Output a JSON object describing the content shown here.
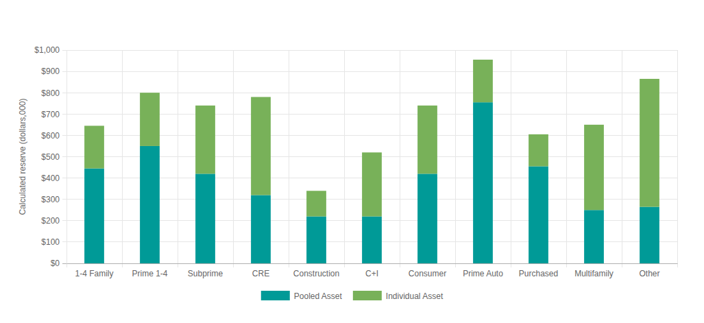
{
  "chart_data": {
    "type": "bar",
    "stacked": true,
    "grid": true,
    "legend": "bottom",
    "y_label": "Calculated reserve (dollars,000)",
    "categories": [
      "1-4 Family",
      "Prime 1-4",
      "Subprime",
      "CRE",
      "Construction",
      "C+I",
      "Consumer",
      "Prime Auto",
      "Purchased",
      "Multifamily",
      "Other"
    ],
    "series": [
      {
        "name": "Pooled Asset",
        "color": "#009a97",
        "values": [
          445,
          550,
          420,
          320,
          220,
          220,
          420,
          755,
          455,
          250,
          265
        ]
      },
      {
        "name": "Individual Asset",
        "color": "#78b159",
        "values": [
          200,
          250,
          320,
          460,
          120,
          300,
          320,
          200,
          150,
          400,
          600
        ]
      }
    ],
    "ylim": [
      0,
      1000
    ],
    "yticks": [
      {
        "value": 0,
        "label": "$0"
      },
      {
        "value": 100,
        "label": "$100"
      },
      {
        "value": 200,
        "label": "$200"
      },
      {
        "value": 300,
        "label": "$300"
      },
      {
        "value": 400,
        "label": "$400"
      },
      {
        "value": 500,
        "label": "$500"
      },
      {
        "value": 600,
        "label": "$600"
      },
      {
        "value": 700,
        "label": "$700"
      },
      {
        "value": 800,
        "label": "$800"
      },
      {
        "value": 900,
        "label": "$900"
      },
      {
        "value": 1000,
        "label": "$1,000"
      }
    ]
  }
}
